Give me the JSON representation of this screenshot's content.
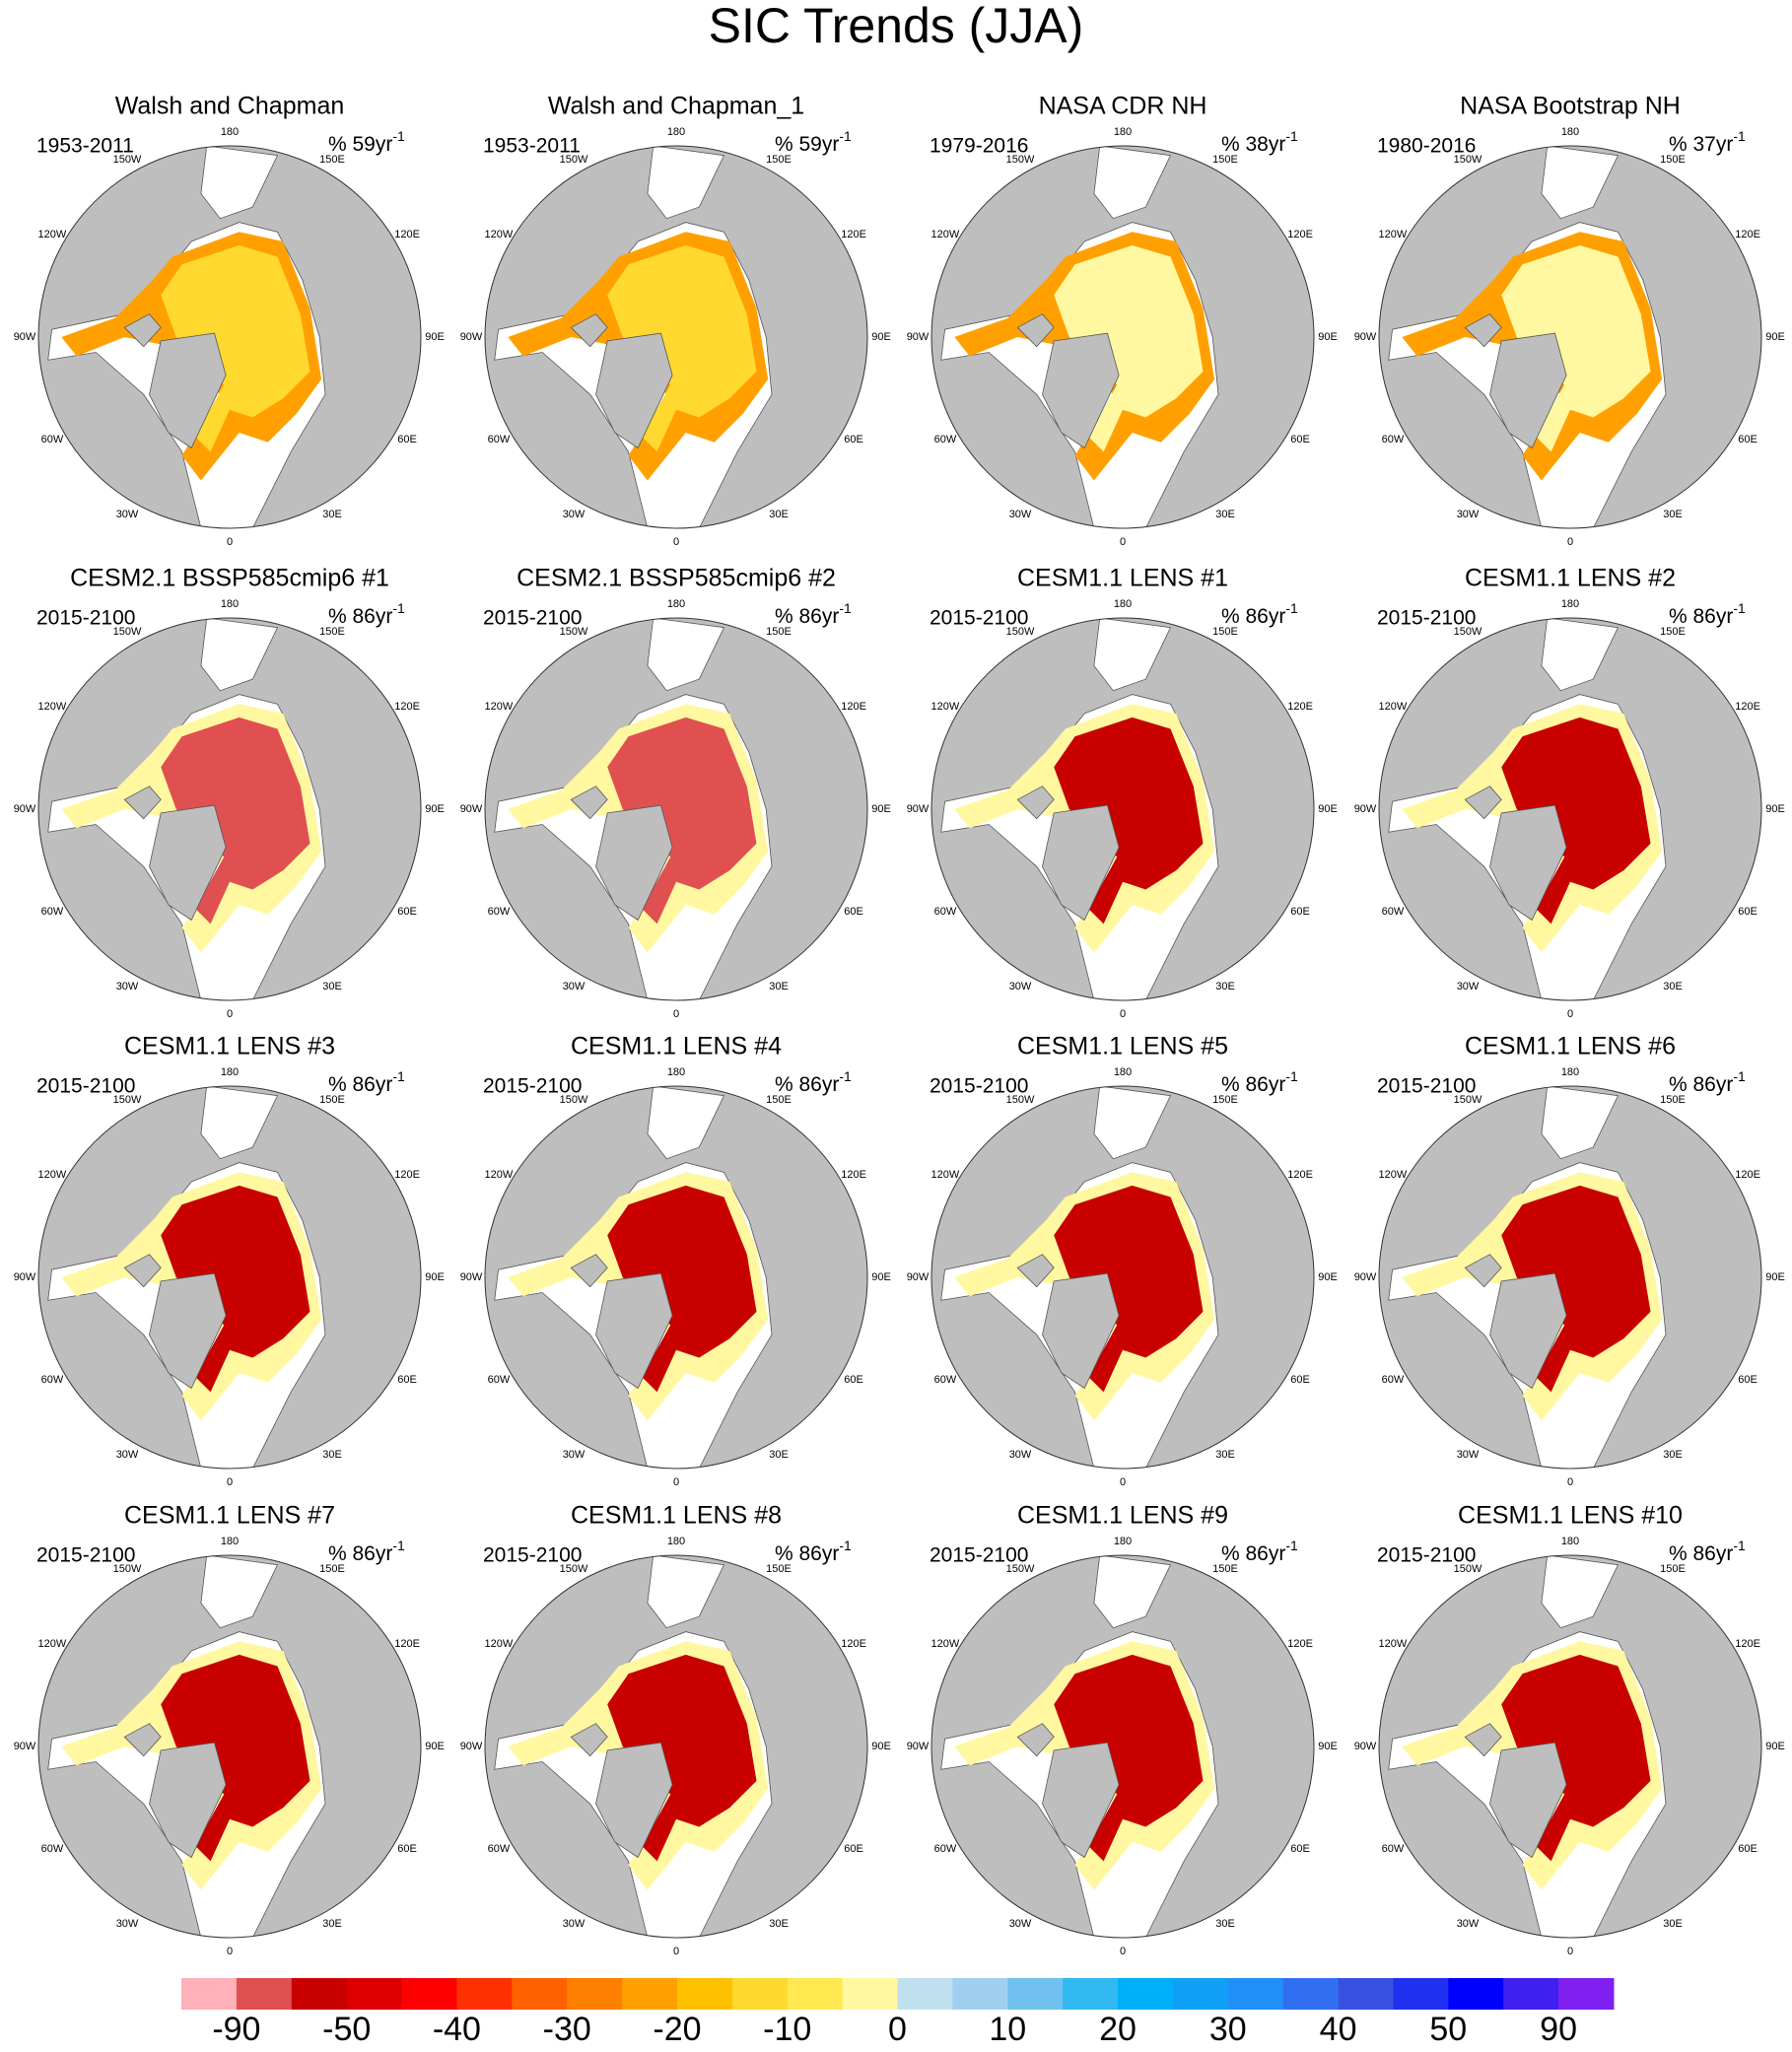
{
  "title": "SIC Trends (JJA)",
  "longitude_labels": [
    "180",
    "150W",
    "150E",
    "120W",
    "120E",
    "90W",
    "90E",
    "60W",
    "60E",
    "30W",
    "30E",
    "0"
  ],
  "panels": [
    {
      "title": "Walsh and Chapman",
      "period": "1953-2011",
      "trend": "% 59yr",
      "exponent": "-1"
    },
    {
      "title": "Walsh and Chapman_1",
      "period": "1953-2011",
      "trend": "% 59yr",
      "exponent": "-1"
    },
    {
      "title": "NASA CDR NH",
      "period": "1979-2016",
      "trend": "% 38yr",
      "exponent": "-1"
    },
    {
      "title": "NASA Bootstrap NH",
      "period": "1980-2016",
      "trend": "% 37yr",
      "exponent": "-1"
    },
    {
      "title": "CESM2.1 BSSP585cmip6 #1",
      "period": "2015-2100",
      "trend": "% 86yr",
      "exponent": "-1"
    },
    {
      "title": "CESM2.1 BSSP585cmip6 #2",
      "period": "2015-2100",
      "trend": "% 86yr",
      "exponent": "-1"
    },
    {
      "title": "CESM1.1 LENS #1",
      "period": "2015-2100",
      "trend": "% 86yr",
      "exponent": "-1"
    },
    {
      "title": "CESM1.1 LENS #2",
      "period": "2015-2100",
      "trend": "% 86yr",
      "exponent": "-1"
    },
    {
      "title": "CESM1.1 LENS #3",
      "period": "2015-2100",
      "trend": "% 86yr",
      "exponent": "-1"
    },
    {
      "title": "CESM1.1 LENS #4",
      "period": "2015-2100",
      "trend": "% 86yr",
      "exponent": "-1"
    },
    {
      "title": "CESM1.1 LENS #5",
      "period": "2015-2100",
      "trend": "% 86yr",
      "exponent": "-1"
    },
    {
      "title": "CESM1.1 LENS #6",
      "period": "2015-2100",
      "trend": "% 86yr",
      "exponent": "-1"
    },
    {
      "title": "CESM1.1 LENS #7",
      "period": "2015-2100",
      "trend": "% 86yr",
      "exponent": "-1"
    },
    {
      "title": "CESM1.1 LENS #8",
      "period": "2015-2100",
      "trend": "% 86yr",
      "exponent": "-1"
    },
    {
      "title": "CESM1.1 LENS #9",
      "period": "2015-2100",
      "trend": "% 86yr",
      "exponent": "-1"
    },
    {
      "title": "CESM1.1 LENS #10",
      "period": "2015-2100",
      "trend": "% 86yr",
      "exponent": "-1"
    }
  ],
  "colorbar": {
    "colors": [
      "#ffb0b8",
      "#e05050",
      "#c80000",
      "#dc0000",
      "#ff0000",
      "#ff3000",
      "#ff6000",
      "#ff8000",
      "#ffa000",
      "#ffc000",
      "#ffd830",
      "#ffe850",
      "#fff8a0",
      "#c0e0f0",
      "#a0d0f0",
      "#70c0f0",
      "#30b8f0",
      "#00b0f8",
      "#10a0f8",
      "#2090f8",
      "#3070f0",
      "#3850e0",
      "#2030f0",
      "#0000ff",
      "#4020f0",
      "#8020f0"
    ],
    "labels": [
      -90,
      -50,
      -40,
      -30,
      -20,
      -10,
      0,
      10,
      20,
      30,
      40,
      50,
      90
    ]
  }
}
